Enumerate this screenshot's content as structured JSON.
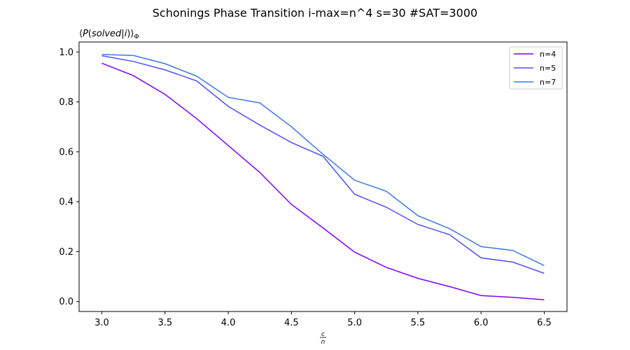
{
  "chart_data": {
    "type": "line",
    "title": "Schonings Phase Transition  i-max=n^4 s=30 #SAT=3000",
    "xlabel": "c/n",
    "ylabel": "⟨P(solved|i)⟩Φ",
    "x": [
      3.0,
      3.25,
      3.5,
      3.75,
      4.0,
      4.25,
      4.5,
      4.75,
      5.0,
      5.25,
      5.5,
      5.75,
      6.0,
      6.25,
      6.5
    ],
    "xlim": [
      2.82,
      6.68
    ],
    "ylim": [
      -0.04,
      1.04
    ],
    "xticks": [
      "3.0",
      "3.5",
      "4.0",
      "4.5",
      "5.0",
      "5.5",
      "6.0",
      "6.5"
    ],
    "yticks": [
      "0.0",
      "0.2",
      "0.4",
      "0.6",
      "0.8",
      "1.0"
    ],
    "grid": false,
    "legend_position": "top-right",
    "series": [
      {
        "name": "n=4",
        "color": "#8000ff",
        "values": [
          0.955,
          0.905,
          0.83,
          0.733,
          0.625,
          0.517,
          0.389,
          0.295,
          0.198,
          0.137,
          0.093,
          0.06,
          0.024,
          0.017,
          0.007
        ]
      },
      {
        "name": "n=5",
        "color": "#4f4ffc",
        "values": [
          0.985,
          0.962,
          0.928,
          0.884,
          0.782,
          0.707,
          0.637,
          0.582,
          0.43,
          0.378,
          0.309,
          0.268,
          0.175,
          0.158,
          0.113
        ]
      },
      {
        "name": "n=7",
        "color": "#3a78ea",
        "values": [
          0.99,
          0.986,
          0.953,
          0.903,
          0.818,
          0.796,
          0.7,
          0.59,
          0.486,
          0.442,
          0.344,
          0.292,
          0.22,
          0.205,
          0.144
        ]
      }
    ]
  }
}
